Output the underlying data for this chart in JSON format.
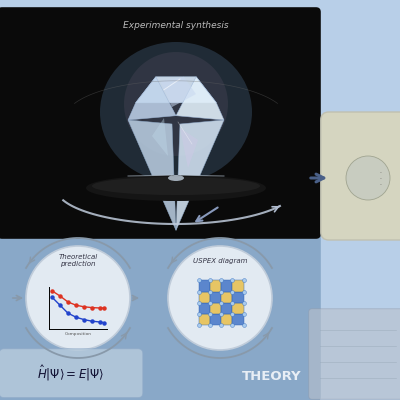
{
  "bg_color": "#b8cfe8",
  "title": "Experimental synthesis",
  "theory_label": "THEORY",
  "theory_circle1_label": "Theoretical\nprediction",
  "theory_circle2_label": "USPEX diagram",
  "arrow_color_dark": "#4a6088",
  "arrow_color_light": "#8899bb",
  "dark_panel_color": "#0a0a0a",
  "theory_panel_color": "#7a9cbf",
  "circle_bg": "#e8eef5",
  "rounded_box_color": "#d8d8c8",
  "rounded_box_edge": "#c0c0b0"
}
